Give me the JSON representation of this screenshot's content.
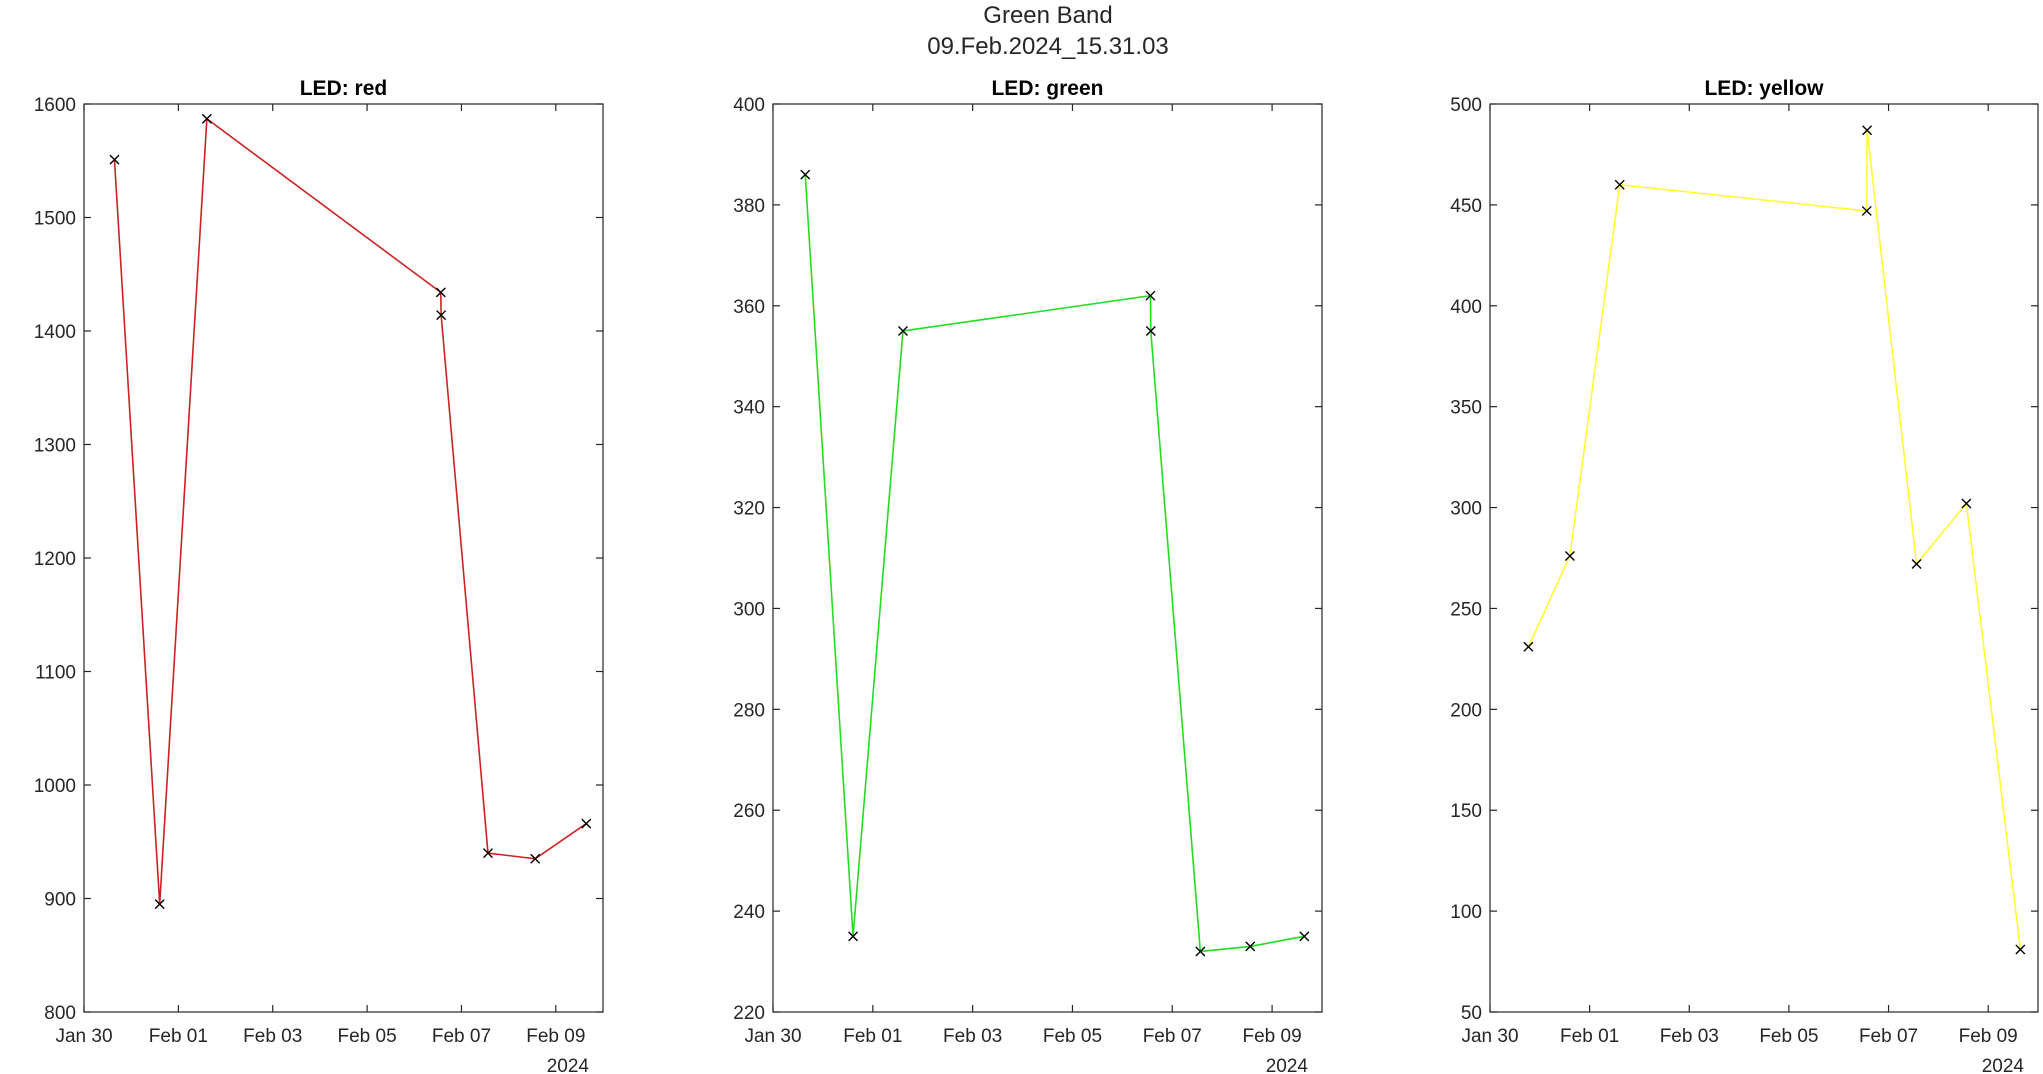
{
  "figure": {
    "title": "Green Band",
    "subtitle": "09.Feb.2024_15.31.03"
  },
  "chart_data": [
    {
      "type": "line",
      "title": "LED: red",
      "xlabel": "",
      "ylabel": "",
      "x_type": "datetime",
      "x_year_label": "2024",
      "xlim": [
        "2024-01-30",
        "2024-02-10"
      ],
      "ylim": [
        800,
        1600
      ],
      "x_ticks": [
        "2024-01-30",
        "2024-02-01",
        "2024-02-03",
        "2024-02-05",
        "2024-02-07",
        "2024-02-09"
      ],
      "x_tick_labels": [
        "Jan 30",
        "Feb 01",
        "Feb 03",
        "Feb 05",
        "Feb 07",
        "Feb 09"
      ],
      "y_ticks": [
        800,
        900,
        1000,
        1100,
        1200,
        1300,
        1400,
        1500,
        1600
      ],
      "y_tick_labels": [
        "800",
        "900",
        "1000",
        "1100",
        "1200",
        "1300",
        "1400",
        "1500",
        "1600"
      ],
      "grid": false,
      "marker": "x",
      "line_color": "#cc2222",
      "marker_color": "#000000",
      "series": [
        {
          "x": [
            "2024-01-30 15:30",
            "2024-01-31 14:30",
            "2024-02-01 14:30",
            "2024-02-06 13:30",
            "2024-02-06 13:40",
            "2024-02-07 13:30",
            "2024-02-08 13:30",
            "2024-02-09 15:30"
          ],
          "y": [
            1551,
            895,
            1587,
            1434,
            1414,
            940,
            935,
            966
          ]
        }
      ]
    },
    {
      "type": "line",
      "title": "LED: green",
      "xlabel": "",
      "ylabel": "",
      "x_type": "datetime",
      "x_year_label": "2024",
      "xlim": [
        "2024-01-30",
        "2024-02-10"
      ],
      "ylim": [
        220,
        400
      ],
      "x_ticks": [
        "2024-01-30",
        "2024-02-01",
        "2024-02-03",
        "2024-02-05",
        "2024-02-07",
        "2024-02-09"
      ],
      "x_tick_labels": [
        "Jan 30",
        "Feb 01",
        "Feb 03",
        "Feb 05",
        "Feb 07",
        "Feb 09"
      ],
      "y_ticks": [
        220,
        240,
        260,
        280,
        300,
        320,
        340,
        360,
        380,
        400
      ],
      "y_tick_labels": [
        "220",
        "240",
        "260",
        "280",
        "300",
        "320",
        "340",
        "360",
        "380",
        "400"
      ],
      "grid": false,
      "marker": "x",
      "line_color": "#22dd22",
      "marker_color": "#000000",
      "series": [
        {
          "x": [
            "2024-01-30 15:30",
            "2024-01-31 14:30",
            "2024-02-01 14:30",
            "2024-02-06 13:30",
            "2024-02-06 13:40",
            "2024-02-07 13:30",
            "2024-02-08 13:30",
            "2024-02-09 15:30"
          ],
          "y": [
            386,
            235,
            355,
            362,
            355,
            232,
            233,
            235
          ]
        }
      ]
    },
    {
      "type": "line",
      "title": "LED: yellow",
      "xlabel": "",
      "ylabel": "",
      "x_type": "datetime",
      "x_year_label": "2024",
      "xlim": [
        "2024-01-30",
        "2024-02-10"
      ],
      "ylim": [
        50,
        500
      ],
      "x_ticks": [
        "2024-01-30",
        "2024-02-01",
        "2024-02-03",
        "2024-02-05",
        "2024-02-07",
        "2024-02-09"
      ],
      "x_tick_labels": [
        "Jan 30",
        "Feb 01",
        "Feb 03",
        "Feb 05",
        "Feb 07",
        "Feb 09"
      ],
      "y_ticks": [
        50,
        100,
        150,
        200,
        250,
        300,
        350,
        400,
        450,
        500
      ],
      "y_tick_labels": [
        "50",
        "100",
        "150",
        "200",
        "250",
        "300",
        "350",
        "400",
        "450",
        "500"
      ],
      "grid": false,
      "marker": "x",
      "line_color": "#ffff33",
      "marker_color": "#000000",
      "series": [
        {
          "x": [
            "2024-01-30 18:30",
            "2024-01-31 14:30",
            "2024-02-01 14:30",
            "2024-02-06 13:30",
            "2024-02-06 13:40",
            "2024-02-07 13:30",
            "2024-02-08 13:30",
            "2024-02-09 15:30"
          ],
          "y": [
            231,
            276,
            460,
            447,
            487,
            272,
            302,
            81
          ]
        }
      ]
    }
  ]
}
